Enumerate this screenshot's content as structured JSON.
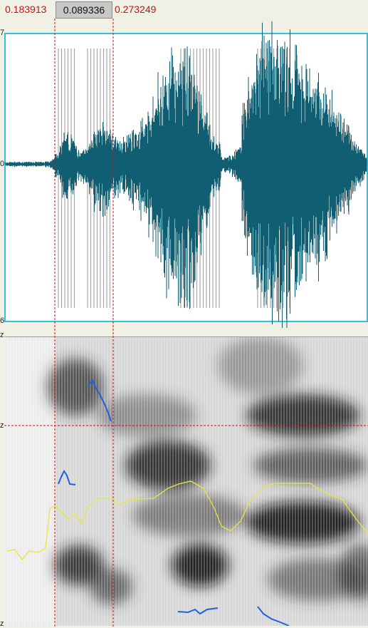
{
  "selection": {
    "start": "0.183913",
    "duration": "0.089336",
    "end": "0.273249"
  },
  "waveform": {
    "top_label": "7",
    "zero_label": "0",
    "bottom_label": "6"
  },
  "spectrogram": {
    "top_label": "z",
    "cursor_label": "z",
    "bottom_label": "z"
  },
  "colors": {
    "waveform": "#0f5e72",
    "panel_border": "#33c0e0",
    "selection_shade": "#ffd3d3",
    "cursor": "#cc1111",
    "pitch": "#1f5fe0",
    "intensity": "#e6e640",
    "pulses": "#a8a8a8"
  }
}
